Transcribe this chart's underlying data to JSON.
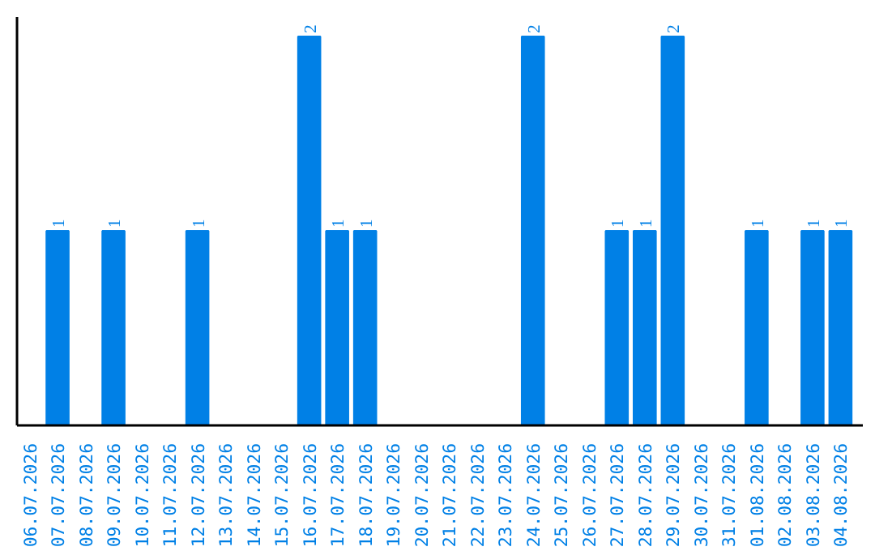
{
  "chart_data": {
    "type": "bar",
    "categories": [
      "06.07.2026",
      "07.07.2026",
      "08.07.2026",
      "09.07.2026",
      "10.07.2026",
      "11.07.2026",
      "12.07.2026",
      "13.07.2026",
      "14.07.2026",
      "15.07.2026",
      "16.07.2026",
      "17.07.2026",
      "18.07.2026",
      "19.07.2026",
      "20.07.2026",
      "21.07.2026",
      "22.07.2026",
      "23.07.2026",
      "24.07.2026",
      "25.07.2026",
      "26.07.2026",
      "27.07.2026",
      "28.07.2026",
      "29.07.2026",
      "30.07.2026",
      "31.07.2026",
      "01.08.2026",
      "02.08.2026",
      "03.08.2026",
      "04.08.2026"
    ],
    "values": [
      0,
      1,
      0,
      1,
      0,
      0,
      1,
      0,
      0,
      0,
      2,
      1,
      1,
      0,
      0,
      0,
      0,
      0,
      2,
      0,
      0,
      1,
      1,
      2,
      0,
      0,
      1,
      0,
      1,
      1
    ],
    "value_labels": [
      null,
      "1",
      null,
      "1",
      null,
      null,
      "1",
      null,
      null,
      null,
      "2",
      "1",
      "1",
      null,
      null,
      null,
      null,
      null,
      "2",
      null,
      null,
      "1",
      "1",
      "2",
      null,
      null,
      "1",
      null,
      "1",
      "1"
    ],
    "color": "#0080e6",
    "ylim": [
      0,
      2.1
    ],
    "tick_labels": "x",
    "grid": false
  }
}
